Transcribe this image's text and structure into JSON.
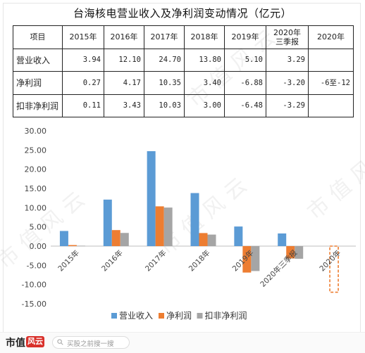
{
  "title": "台海核电营业收入及净利润变动情况（亿元）",
  "table": {
    "header": [
      "项目",
      "2015年",
      "2016年",
      "2017年",
      "2018年",
      "2019年",
      "2020年\n三季报",
      "2020年"
    ],
    "rows": [
      {
        "label": "营业收入",
        "cells": [
          "3.94",
          "12.10",
          "24.70",
          "13.80",
          "5.10",
          "3.29",
          ""
        ]
      },
      {
        "label": "净利润",
        "cells": [
          "0.27",
          "4.17",
          "10.35",
          "3.40",
          "-6.88",
          "-3.20",
          "-6至-12"
        ]
      },
      {
        "label": "扣非净利润",
        "cells": [
          "0.11",
          "3.43",
          "10.03",
          "3.00",
          "-6.48",
          "-3.29",
          ""
        ]
      }
    ]
  },
  "chart_data": {
    "type": "bar",
    "categories": [
      "2015年",
      "2016年",
      "2017年",
      "2018年",
      "2019年",
      "2020年三季报",
      "2020年"
    ],
    "series": [
      {
        "name": "营业收入",
        "color": "#5b9bd5",
        "values": [
          3.94,
          12.1,
          24.7,
          13.8,
          5.1,
          3.29,
          null
        ]
      },
      {
        "name": "净利润",
        "color": "#ed7d31",
        "values": [
          0.27,
          4.17,
          10.35,
          3.4,
          -6.88,
          -3.2,
          null
        ]
      },
      {
        "name": "扣非净利润",
        "color": "#a5a5a5",
        "values": [
          0.11,
          3.43,
          10.03,
          3.0,
          -6.48,
          -3.29,
          null
        ]
      }
    ],
    "forecast_range": {
      "category": "2020年",
      "series": "净利润",
      "low": -12,
      "high": -6,
      "style": "dashed",
      "color": "#ed7d31"
    },
    "ylim": [
      -15,
      30
    ],
    "yticks": [
      "30.00",
      "25.00",
      "20.00",
      "15.00",
      "10.00",
      "5.00",
      "0.00",
      "-5.00",
      "-10.00",
      "-15.00"
    ],
    "ytick_values": [
      30,
      25,
      20,
      15,
      10,
      5,
      0,
      -5,
      -10,
      -15
    ],
    "legend_position": "bottom",
    "grid": false
  },
  "footer": {
    "brand": "市值",
    "brand_badge": "风云",
    "search_placeholder": "买股之前搜一搜"
  },
  "watermark_text": "市值风云"
}
